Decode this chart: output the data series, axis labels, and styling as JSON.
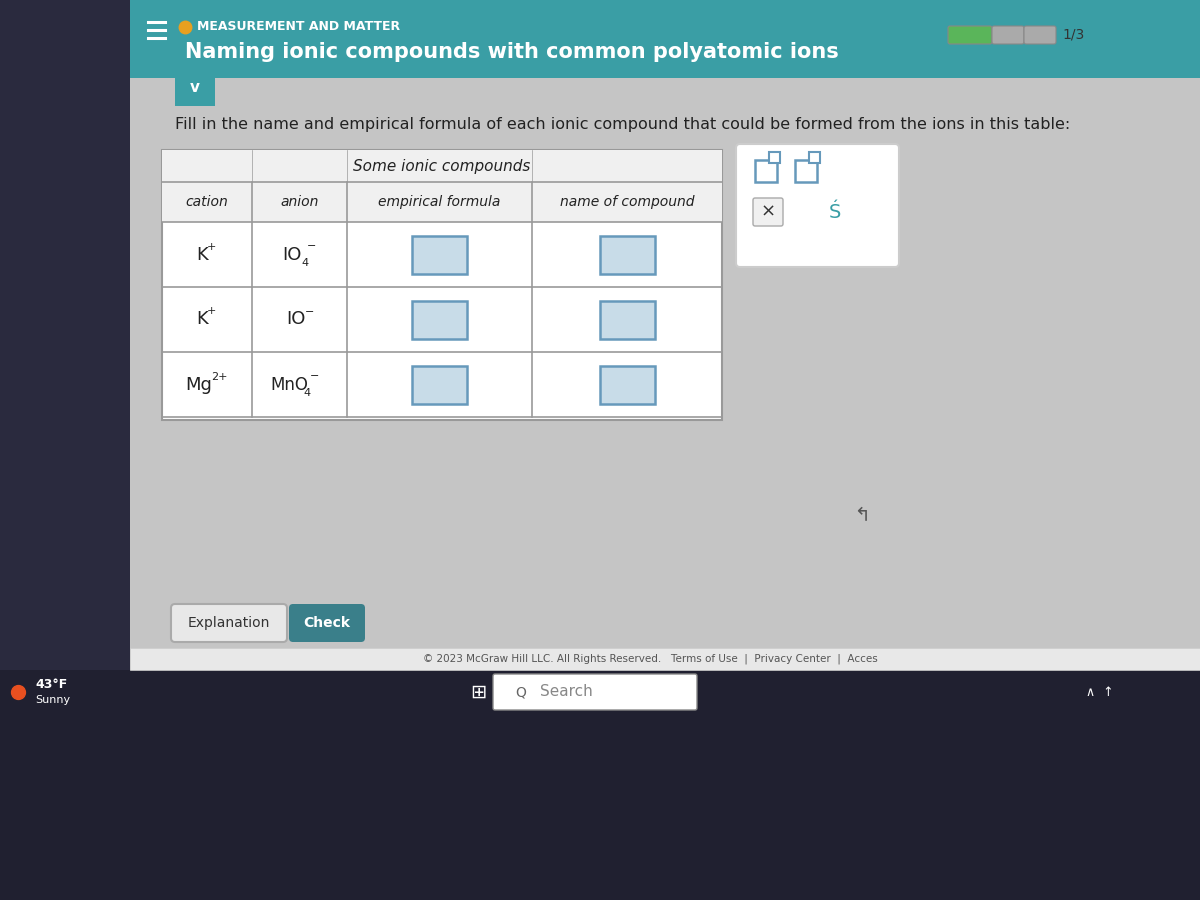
{
  "header_bg_color": "#3a9ea5",
  "header_text_color": "#ffffff",
  "main_bg_color": "#c8c8c8",
  "content_bg_color": "#d0d0d0",
  "table_bg_color": "#f0f0f0",
  "cell_bg_color": "#c8dce8",
  "border_color": "#999999",
  "title_small": "MEASUREMENT AND MATTER",
  "title_large": "Naming ionic compounds with common polyatomic ions",
  "instruction": "Fill in the name and empirical formula of each ionic compound that could be formed from the ions in this table:",
  "table_title": "Some ionic compounds",
  "col_headers": [
    "cation",
    "anion",
    "empirical formula",
    "name of compound"
  ],
  "button_explanation": "Explanation",
  "button_check": "Check",
  "button_check_color": "#3a7f8a",
  "footer_text": "© 2023 McGraw Hill LLC. All Rights Reserved.   Terms of Use  |  Privacy Center  |  Acces",
  "progress_text": "1/3",
  "search_text": "Search",
  "taskbar_bg": "#202030",
  "left_panel_bg": "#2a2a3e",
  "desktop_bg": "#1e1e2e",
  "screen_bg": "#c5c5c5"
}
